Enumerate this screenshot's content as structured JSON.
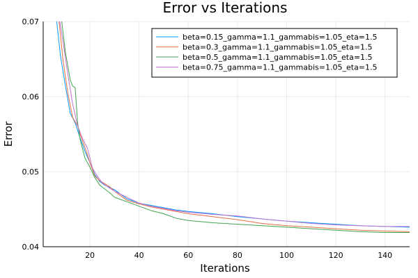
{
  "chart_data": {
    "type": "line",
    "title": "Error vs Iterations",
    "xlabel": "Iterations",
    "ylabel": "Error",
    "xlim": [
      1,
      150
    ],
    "ylim": [
      0.04,
      0.07
    ],
    "xticks": [
      20,
      40,
      60,
      80,
      100,
      120,
      140
    ],
    "yticks": [
      0.04,
      0.05,
      0.06,
      0.07
    ],
    "ytick_labels": [
      "0.04",
      "0.05",
      "0.06",
      "0.07"
    ],
    "grid": true,
    "legend_position": "top-right",
    "series": [
      {
        "name": "beta=0.15_gamma=1.1_gammabis=1.05_eta=1.5",
        "color": "#009AFA",
        "x": [
          6,
          8,
          10,
          12,
          14,
          16,
          18,
          20,
          22,
          24,
          26,
          28,
          30,
          35,
          40,
          45,
          50,
          55,
          60,
          70,
          80,
          90,
          100,
          110,
          120,
          130,
          140,
          150
        ],
        "y": [
          0.0715,
          0.0655,
          0.0615,
          0.0578,
          0.0565,
          0.0545,
          0.0527,
          0.0512,
          0.0496,
          0.0487,
          0.0482,
          0.0479,
          0.0476,
          0.0464,
          0.0458,
          0.0455,
          0.0452,
          0.0449,
          0.0447,
          0.0444,
          0.044,
          0.0437,
          0.0434,
          0.0432,
          0.043,
          0.0428,
          0.0427,
          0.0426
        ]
      },
      {
        "name": "beta=0.3_gamma=1.1_gammabis=1.05_eta=1.5",
        "color": "#E36F47",
        "x": [
          7,
          9,
          11,
          13,
          15,
          16,
          18,
          20,
          22,
          24,
          26,
          28,
          30,
          35,
          40,
          45,
          50,
          55,
          60,
          70,
          80,
          90,
          100,
          110,
          120,
          130,
          140,
          150
        ],
        "y": [
          0.0715,
          0.065,
          0.0605,
          0.0572,
          0.0561,
          0.055,
          0.0532,
          0.0512,
          0.0494,
          0.0488,
          0.0484,
          0.048,
          0.0474,
          0.0462,
          0.0457,
          0.0453,
          0.045,
          0.0447,
          0.0444,
          0.044,
          0.0436,
          0.0431,
          0.0428,
          0.0426,
          0.0424,
          0.0422,
          0.0421,
          0.042
        ]
      },
      {
        "name": "beta=0.5_gamma=1.1_gammabis=1.05_eta=1.5",
        "color": "#3EA44E",
        "x": [
          8,
          10,
          12,
          13,
          14,
          15,
          16,
          18,
          20,
          22,
          24,
          26,
          28,
          30,
          35,
          40,
          45,
          50,
          55,
          60,
          70,
          80,
          90,
          100,
          110,
          120,
          130,
          140,
          150
        ],
        "y": [
          0.0715,
          0.066,
          0.0622,
          0.0614,
          0.0612,
          0.0565,
          0.0543,
          0.0518,
          0.0506,
          0.0492,
          0.0482,
          0.0477,
          0.0472,
          0.0466,
          0.046,
          0.0454,
          0.0448,
          0.0444,
          0.0438,
          0.0435,
          0.0432,
          0.043,
          0.0428,
          0.0426,
          0.0424,
          0.0422,
          0.042,
          0.0419,
          0.0419
        ]
      },
      {
        "name": "beta=0.75_gamma=1.1_gammabis=1.05_eta=1.5",
        "color": "#C271D2",
        "x": [
          7,
          9,
          11,
          13,
          15,
          17,
          19,
          21,
          23,
          25,
          28,
          30,
          35,
          40,
          45,
          50,
          55,
          60,
          70,
          80,
          90,
          100,
          110,
          120,
          130,
          140,
          150
        ],
        "y": [
          0.0715,
          0.0675,
          0.063,
          0.059,
          0.0561,
          0.0544,
          0.0531,
          0.0505,
          0.0494,
          0.0485,
          0.0478,
          0.0474,
          0.0466,
          0.0458,
          0.0454,
          0.0451,
          0.0448,
          0.0446,
          0.0443,
          0.0441,
          0.0437,
          0.0434,
          0.0431,
          0.0429,
          0.0428,
          0.0427,
          0.0427
        ]
      }
    ]
  }
}
